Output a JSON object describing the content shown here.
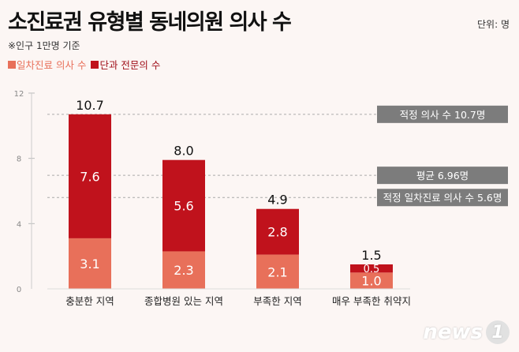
{
  "title": "소진료권 유형별 동네의원 의사 수",
  "unit": "단위: 명",
  "note": "※인구 1만명 기준",
  "colors": {
    "primary": "#e8705a",
    "specialist": "#c0121c",
    "refbox": "#7c7c7c"
  },
  "chart_data": {
    "type": "bar",
    "stacked": true,
    "categories": [
      "충분한 지역",
      "종합병원 있는 지역",
      "부족한 지역",
      "매우 부족한 취약지"
    ],
    "series": [
      {
        "name": "일차진료 의사 수",
        "values": [
          3.1,
          2.3,
          2.1,
          1.0
        ],
        "color": "#e8705a"
      },
      {
        "name": "단과 전문의 수",
        "values": [
          7.6,
          5.6,
          2.8,
          0.5
        ],
        "color": "#c0121c"
      }
    ],
    "totals": [
      10.7,
      8.0,
      4.9,
      1.5
    ],
    "yticks": [
      0,
      4,
      8,
      12
    ],
    "ylim": [
      0,
      12
    ],
    "reference_lines": [
      {
        "value": 10.7,
        "label": "적정 의사 수 10.7명"
      },
      {
        "value": 6.96,
        "label": "평균 6.96명"
      },
      {
        "value": 5.6,
        "label": "적정 일차진료 의사 수 5.6명"
      }
    ],
    "legend_position": "top-left"
  },
  "logo": {
    "text": "news",
    "mark": "1"
  }
}
